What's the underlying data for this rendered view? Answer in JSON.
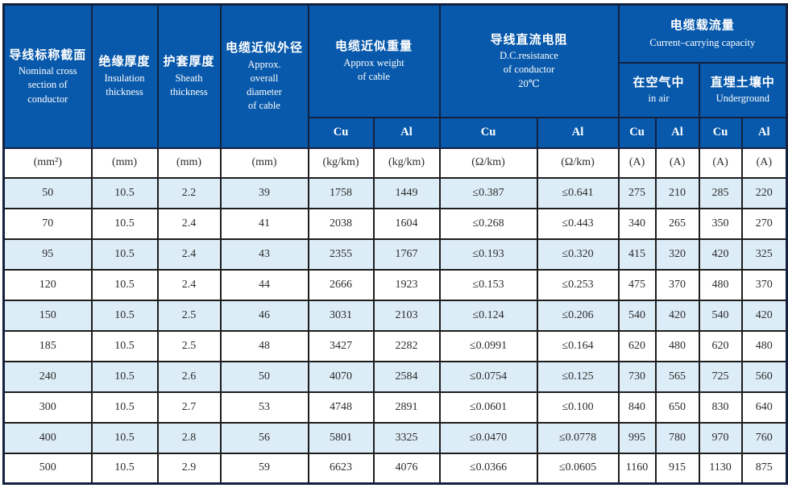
{
  "table": {
    "header": {
      "nominal": {
        "zh": "导线标称截面",
        "en": "Nominal cross\nsection of\nconductor"
      },
      "insulation": {
        "zh": "绝缘厚度",
        "en": "Insulation\nthickness"
      },
      "sheath": {
        "zh": "护套厚度",
        "en": "Sheath\nthickness"
      },
      "diameter": {
        "zh": "电缆近似外径",
        "en": "Approx.\noverall\ndiameter\nof cable"
      },
      "weight": {
        "zh": "电缆近似重量",
        "en": "Approx weight\nof cable"
      },
      "resistance": {
        "zh": "导线直流电阻",
        "en": "D.C.resistance\nof conductor\n20℃"
      },
      "capacity": {
        "zh": "电缆载流量",
        "en": "Current–carrying capacity"
      },
      "in_air": {
        "zh": "在空气中",
        "en": "in air"
      },
      "underground": {
        "zh": "直埋土壤中",
        "en": "Underground"
      },
      "materials": [
        "Cu",
        "Al",
        "Cu",
        "Al",
        "Cu",
        "Al",
        "Cu",
        "Al"
      ]
    },
    "units": [
      "(mm²)",
      "(mm)",
      "(mm)",
      "(mm)",
      "(kg/km)",
      "(kg/km)",
      "(Ω/km)",
      "(Ω/km)",
      "(A)",
      "(A)",
      "(A)",
      "(A)"
    ],
    "rows": [
      [
        "50",
        "10.5",
        "2.2",
        "39",
        "1758",
        "1449",
        "≤0.387",
        "≤0.641",
        "275",
        "210",
        "285",
        "220"
      ],
      [
        "70",
        "10.5",
        "2.4",
        "41",
        "2038",
        "1604",
        "≤0.268",
        "≤0.443",
        "340",
        "265",
        "350",
        "270"
      ],
      [
        "95",
        "10.5",
        "2.4",
        "43",
        "2355",
        "1767",
        "≤0.193",
        "≤0.320",
        "415",
        "320",
        "420",
        "325"
      ],
      [
        "120",
        "10.5",
        "2.4",
        "44",
        "2666",
        "1923",
        "≤0.153",
        "≤0.253",
        "475",
        "370",
        "480",
        "370"
      ],
      [
        "150",
        "10.5",
        "2.5",
        "46",
        "3031",
        "2103",
        "≤0.124",
        "≤0.206",
        "540",
        "420",
        "540",
        "420"
      ],
      [
        "185",
        "10.5",
        "2.5",
        "48",
        "3427",
        "2282",
        "≤0.0991",
        "≤0.164",
        "620",
        "480",
        "620",
        "480"
      ],
      [
        "240",
        "10.5",
        "2.6",
        "50",
        "4070",
        "2584",
        "≤0.0754",
        "≤0.125",
        "730",
        "565",
        "725",
        "560"
      ],
      [
        "300",
        "10.5",
        "2.7",
        "53",
        "4748",
        "2891",
        "≤0.0601",
        "≤0.100",
        "840",
        "650",
        "830",
        "640"
      ],
      [
        "400",
        "10.5",
        "2.8",
        "56",
        "5801",
        "3325",
        "≤0.0470",
        "≤0.0778",
        "995",
        "780",
        "970",
        "760"
      ],
      [
        "500",
        "10.5",
        "2.9",
        "59",
        "6623",
        "4076",
        "≤0.0366",
        "≤0.0605",
        "1160",
        "915",
        "1130",
        "875"
      ]
    ],
    "colors": {
      "header_bg": "#0859ab",
      "header_border": "#13213f",
      "grid": "#1d1d1d",
      "alt_row_bg": "#ddedf8",
      "text": "#2c2c2c",
      "header_text": "#ffffff"
    }
  }
}
